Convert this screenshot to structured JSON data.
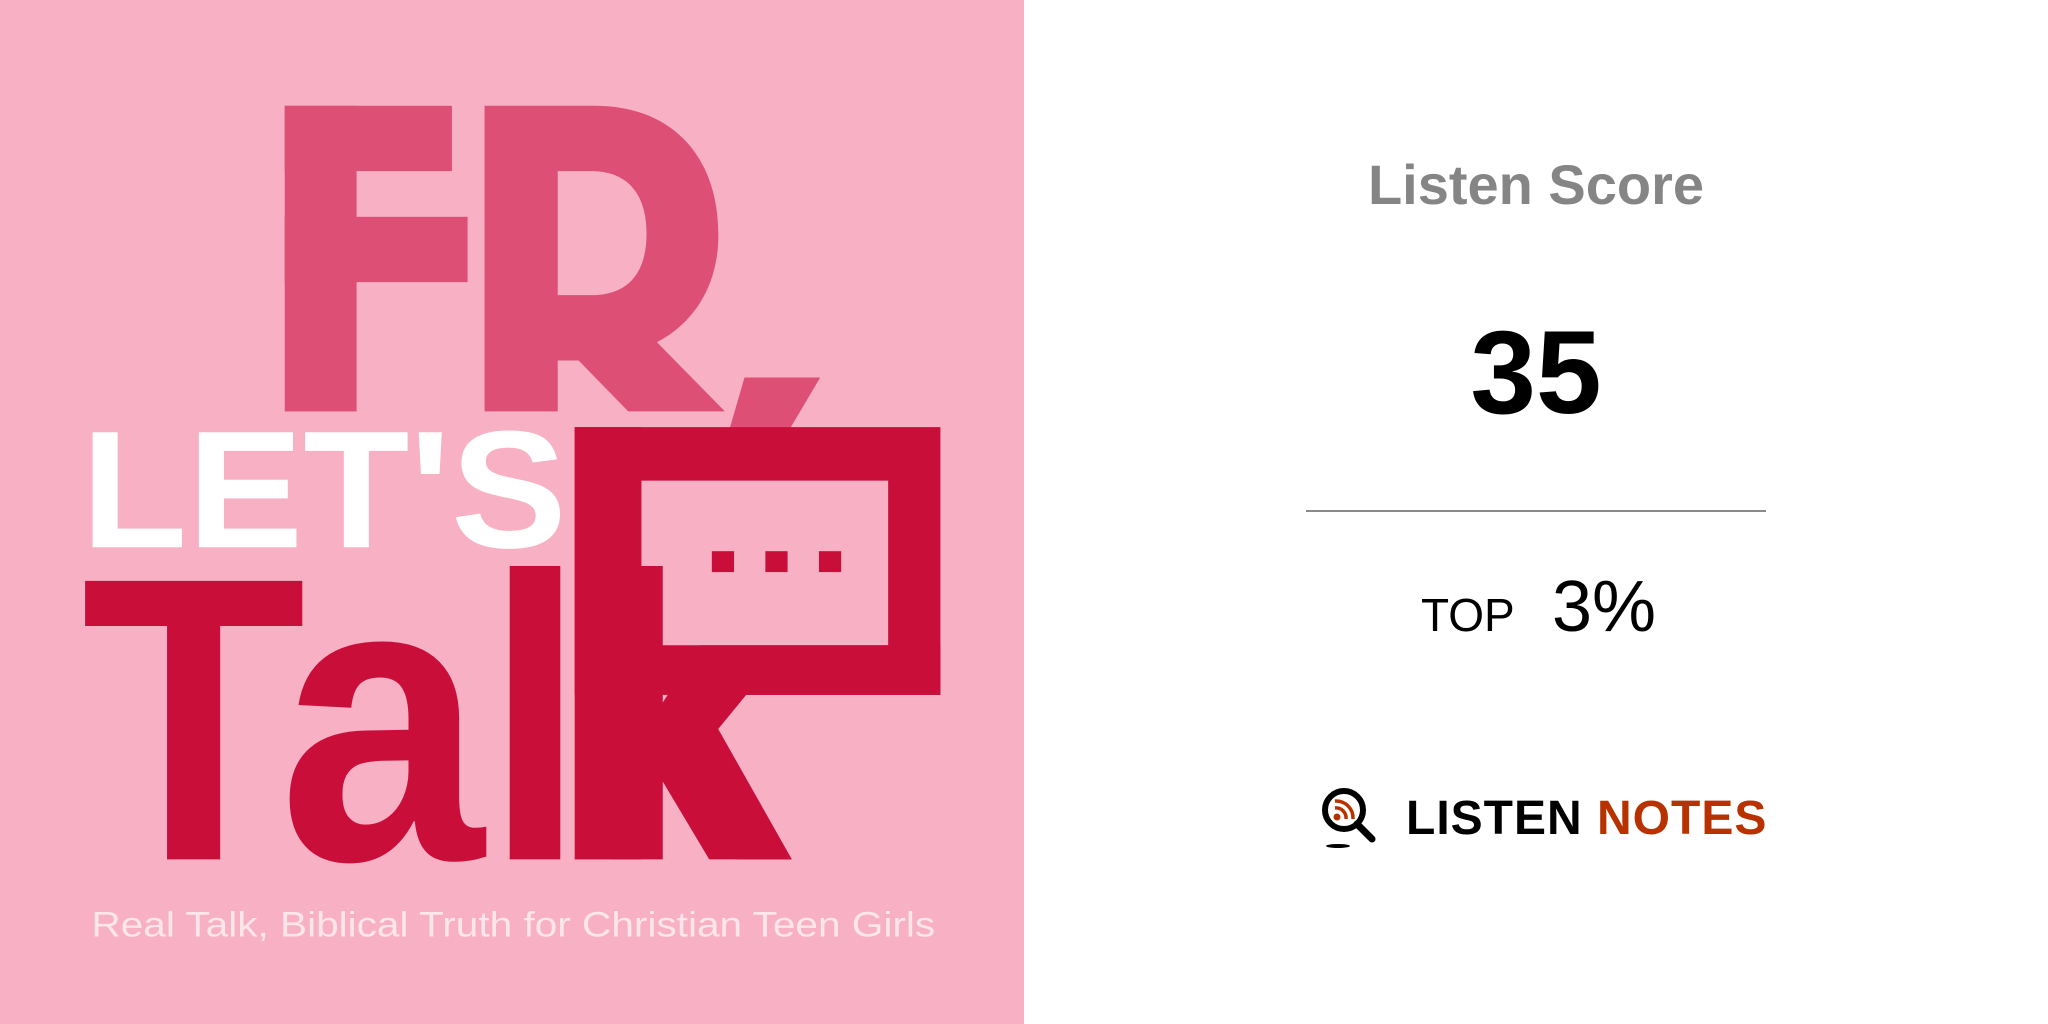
{
  "cover": {
    "title_line1": "FR",
    "title_line2": "LET'S",
    "title_line3": "Talk",
    "tagline": "Real Talk, Biblical Truth for Christian Teen Girls",
    "colors": {
      "background": "#f7b0c4",
      "rose": "#dd4f75",
      "crimson": "#c90e3a",
      "white": "#ffffff"
    }
  },
  "score": {
    "label": "Listen Score",
    "value": "35",
    "top_label": "TOP",
    "top_value": "3%"
  },
  "logo": {
    "icon": "magnifier-rss-icon",
    "word1": "LISTEN",
    "word2": "NOTES",
    "colors": {
      "word1": "#000000",
      "word2": "#b83200"
    }
  }
}
